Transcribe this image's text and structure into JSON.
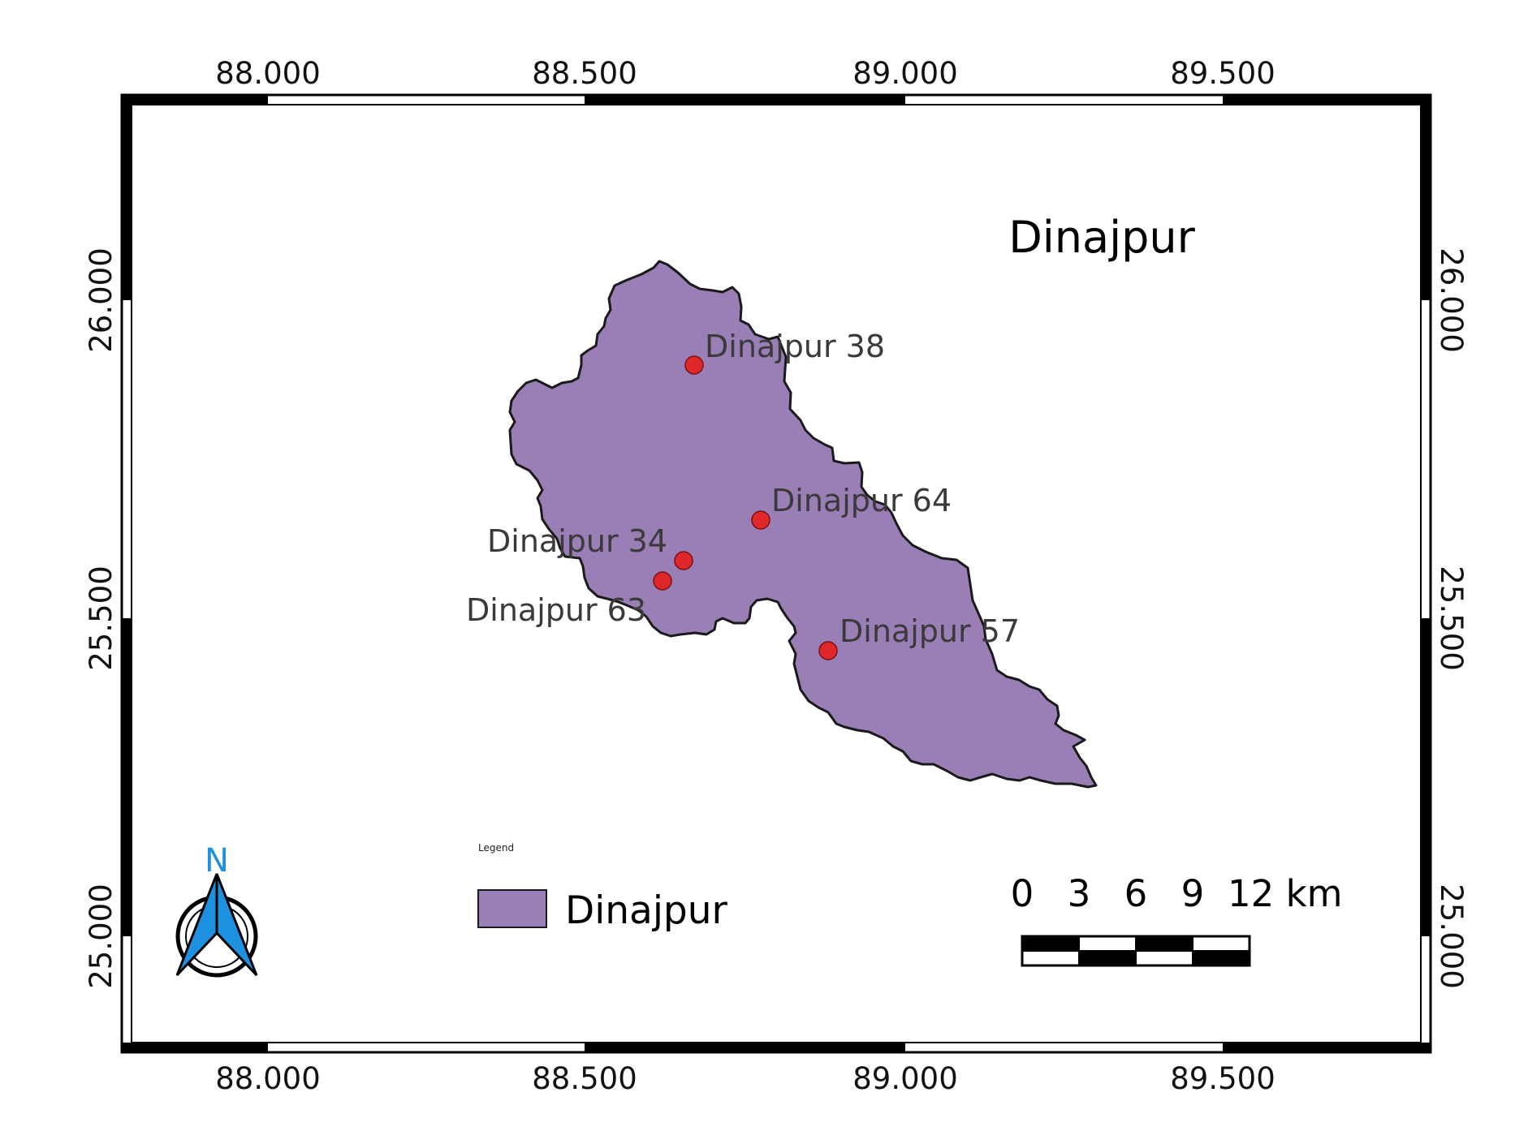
{
  "map": {
    "title": "Dinajpur",
    "top_ticks": [
      "88.000",
      "88.500",
      "89.000",
      "89.500"
    ],
    "bottom_ticks": [
      "88.000",
      "88.500",
      "89.000",
      "89.500"
    ],
    "left_ticks": [
      "26.000",
      "25.500",
      "25.000"
    ],
    "right_ticks": [
      "26.000",
      "25.500",
      "25.000"
    ],
    "colors": {
      "region_fill": "#9a7eb6",
      "point_fill": "#e0282a",
      "north_accent": "#1e90e0"
    }
  },
  "points": [
    {
      "label": "Dinajpur 38"
    },
    {
      "label": "Dinajpur 64"
    },
    {
      "label": "Dinajpur 34"
    },
    {
      "label": "Dinajpur 63"
    },
    {
      "label": "Dinajpur 57"
    }
  ],
  "legend": {
    "title": "Legend",
    "items": [
      {
        "label": "Dinajpur",
        "color": "#9a7eb6"
      }
    ]
  },
  "scalebar": {
    "labels": [
      "0",
      "3",
      "6",
      "9",
      "12 km"
    ]
  },
  "north_arrow": {
    "label": "N",
    "icon": "north-arrow-icon"
  }
}
